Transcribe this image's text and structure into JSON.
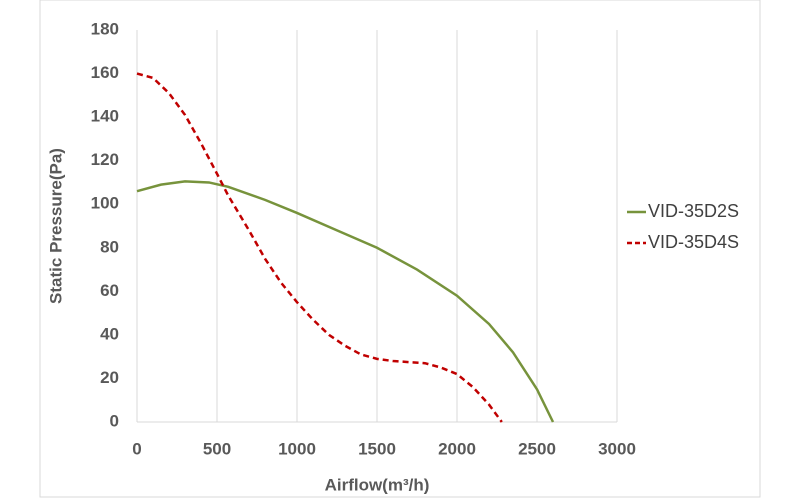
{
  "chart_data": {
    "type": "line",
    "x_label": "Airflow(m³/h)",
    "y_label": "Static Pressure(Pa)",
    "series": [
      {
        "name": "VID-35D2S",
        "color": "#77933c",
        "dash": false,
        "x": [
          0,
          150,
          300,
          450,
          570,
          800,
          1000,
          1250,
          1500,
          1750,
          2000,
          2200,
          2350,
          2500,
          2600
        ],
        "values": [
          106,
          109,
          110.5,
          110,
          108,
          102,
          96,
          88,
          80,
          70,
          58,
          45,
          32,
          15,
          0
        ]
      },
      {
        "name": "VID-35D4S",
        "color": "#c00000",
        "dash": true,
        "x": [
          0,
          100,
          200,
          300,
          400,
          500,
          570,
          700,
          800,
          900,
          1000,
          1100,
          1200,
          1300,
          1400,
          1500,
          1600,
          1700,
          1800,
          1900,
          2000,
          2100,
          2200,
          2280
        ],
        "values": [
          160,
          158,
          151,
          141,
          128,
          114,
          104,
          88,
          75,
          64,
          55,
          47,
          40,
          35,
          31,
          29,
          28,
          27.5,
          27,
          25,
          22,
          16,
          8,
          0
        ]
      }
    ],
    "xlim": [
      0,
      3000
    ],
    "xticks": [
      0,
      500,
      1000,
      1500,
      2000,
      2500,
      3000
    ],
    "ylim": [
      0,
      180
    ],
    "yticks": [
      0,
      20,
      40,
      60,
      80,
      100,
      120,
      140,
      160,
      180
    ],
    "grid": "x",
    "legend": "right"
  }
}
